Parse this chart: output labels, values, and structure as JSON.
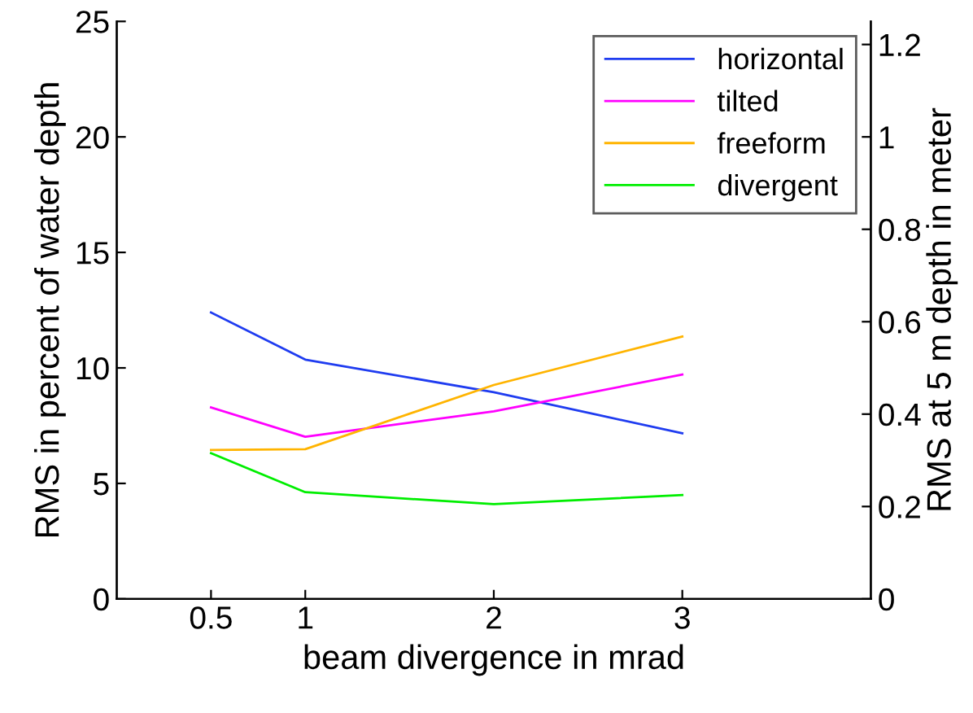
{
  "chart_data": {
    "type": "line",
    "xlabel": "beam divergence in mrad",
    "ylabel": "RMS in percent of water depth",
    "y2label": "RMS at 5 m depth in meter",
    "x": [
      0.5,
      1,
      2,
      3
    ],
    "series": [
      {
        "name": "horizontal",
        "color": "#1f3cf0",
        "values": [
          12.4,
          10.36,
          8.95,
          7.17
        ]
      },
      {
        "name": "tilted",
        "color": "#ff00ff",
        "values": [
          8.29,
          7.02,
          8.12,
          9.71
        ]
      },
      {
        "name": "freeform",
        "color": "#ffb400",
        "values": [
          6.45,
          6.48,
          9.26,
          11.36
        ]
      },
      {
        "name": "divergent",
        "color": "#00ee00",
        "values": [
          6.31,
          4.62,
          4.1,
          4.5
        ]
      }
    ],
    "xlim": [
      0,
      4
    ],
    "xticks": [
      0.5,
      1,
      2,
      3
    ],
    "ylim": [
      0,
      25
    ],
    "yticks": [
      0,
      5,
      10,
      15,
      20,
      25
    ],
    "y2lim": [
      0,
      1.25
    ],
    "y2ticks": [
      0,
      0.2,
      0.4,
      0.6,
      0.8,
      1,
      1.2
    ],
    "legend": "top right",
    "grid": false,
    "marker": "none",
    "line_style": "solid"
  }
}
